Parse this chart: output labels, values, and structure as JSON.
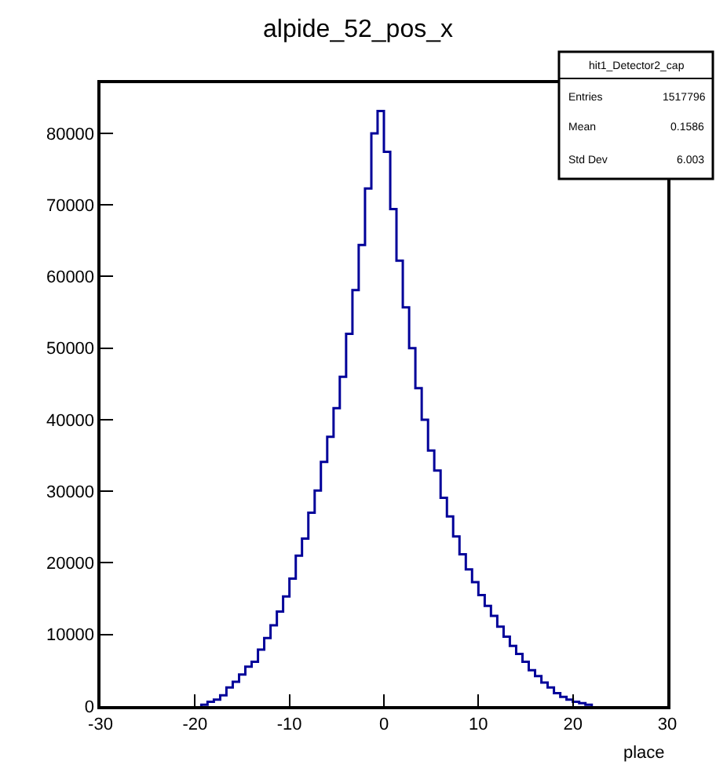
{
  "chart_data": {
    "type": "histogram",
    "title": "alpide_52_pos_x",
    "xlabel": "place",
    "bins": [
      -19.33,
      -18.67,
      -18,
      -17.33,
      -16.67,
      -16,
      -15.33,
      -14.67,
      -14,
      -13.33,
      -12.67,
      -12,
      -11.33,
      -10.67,
      -10,
      -9.33,
      -8.67,
      -8,
      -7.33,
      -6.67,
      -6,
      -5.33,
      -4.67,
      -4,
      -3.33,
      -2.67,
      -2,
      -1.33,
      -0.67,
      0,
      0.67,
      1.33,
      2,
      2.67,
      3.33,
      4,
      4.67,
      5.33,
      6,
      6.67,
      7.33,
      8,
      8.67,
      9.33,
      10,
      10.67,
      11.33,
      12,
      12.67,
      13.33,
      14,
      14.67,
      15.33,
      16,
      16.67,
      17.33,
      18,
      18.67,
      19.33,
      20,
      20.67,
      21.33,
      22
    ],
    "values": [
      200,
      600,
      900,
      1500,
      2600,
      3400,
      4400,
      5500,
      6200,
      7900,
      9500,
      11300,
      13200,
      15300,
      17800,
      21000,
      23400,
      27000,
      30100,
      34100,
      37600,
      41600,
      46000,
      52000,
      58100,
      64400,
      72300,
      80000,
      83100,
      77400,
      69400,
      62200,
      55700,
      50000,
      44400,
      40000,
      35700,
      32900,
      29100,
      26500,
      23700,
      21200,
      19100,
      17300,
      15500,
      14000,
      12600,
      11100,
      9700,
      8400,
      7300,
      6200,
      5000,
      4200,
      3300,
      2600,
      1800,
      1300,
      900,
      600,
      400,
      200
    ],
    "color": "#000099",
    "xlim": [
      -30,
      30
    ],
    "xticks": [
      -30,
      -20,
      -10,
      0,
      10,
      20,
      30
    ],
    "ylim": [
      0,
      87000
    ],
    "yticks": [
      0,
      10000,
      20000,
      30000,
      40000,
      50000,
      60000,
      70000,
      80000
    ],
    "annotations": [
      "hit1_Detector2_cap",
      "Entries 1517796",
      "Mean 0.1586",
      "Std Dev 6.003"
    ]
  }
}
